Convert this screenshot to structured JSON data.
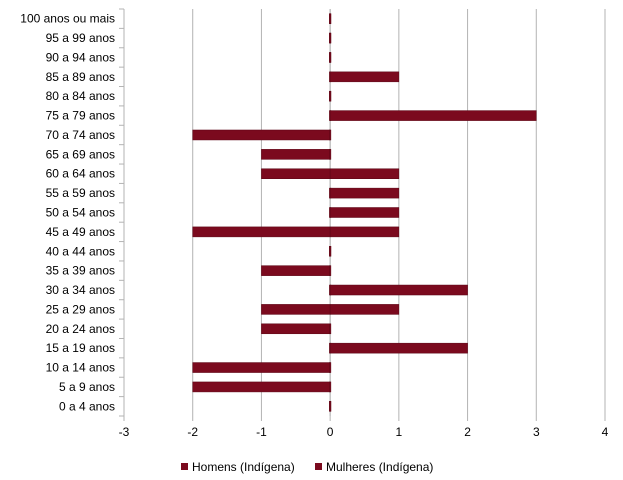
{
  "chart_data": {
    "type": "bar",
    "orientation": "horizontal",
    "categories": [
      "0 a 4 anos",
      "5 a 9 anos",
      "10 a 14 anos",
      "15 a 19 anos",
      "20 a 24 anos",
      "25 a 29 anos",
      "30 a 34 anos",
      "35 a 39 anos",
      "40 a 44 anos",
      "45 a 49 anos",
      "50 a 54 anos",
      "55 a 59 anos",
      "60 a 64 anos",
      "65 a 69 anos",
      "70 a 74 anos",
      "75 a 79 anos",
      "80 a 84 anos",
      "85 a 89 anos",
      "90 a 94 anos",
      "95 a 99 anos",
      "100 anos ou mais"
    ],
    "series": [
      {
        "name": "Homens (Indígena)",
        "color": "#7b0a1e",
        "values": [
          0,
          -2,
          -2,
          0,
          -1,
          -1,
          0,
          -1,
          0,
          -2,
          0,
          0,
          -1,
          -1,
          -2,
          0,
          0,
          0,
          0,
          0,
          0
        ]
      },
      {
        "name": "Mulheres (Indígena)",
        "color": "#7b0a1e",
        "values": [
          0,
          0,
          0,
          2,
          0,
          1,
          2,
          0,
          0,
          1,
          1,
          1,
          1,
          0,
          0,
          3,
          0,
          1,
          0,
          0,
          0
        ]
      }
    ],
    "xlim": [
      -3,
      4
    ],
    "xticks": [
      "-3",
      "-2",
      "-1",
      "0",
      "1",
      "2",
      "3",
      "4"
    ],
    "grid": true,
    "legend_position": "bottom"
  }
}
